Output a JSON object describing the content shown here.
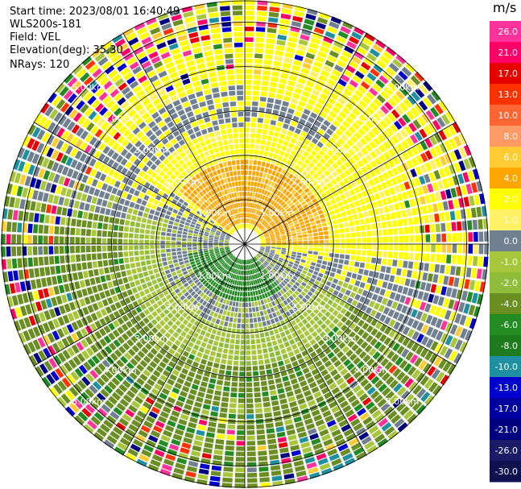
{
  "header": {
    "start_time": "Start time: 2023/08/01 16:40:49",
    "site": "WLS200s-181",
    "field": "Field: VEL",
    "elevation": "Elevation(deg): 35.30",
    "nrays": "NRays: 120"
  },
  "chart_data": {
    "type": "ppi_polar_heatmap",
    "title": "Start time: 2023/08/01 16:40:49",
    "field": "VEL",
    "units": "m/s",
    "n_rays": 120,
    "max_range_km": 5.5,
    "range_rings_km": [
      1,
      2,
      3,
      4,
      5
    ],
    "range_ring_labels": [
      "1.00km",
      "2.00km",
      "3.00km",
      "4.00km",
      "5.00km"
    ],
    "colorbar": {
      "title": "m/s",
      "ticks": [
        "26.0",
        "21.0",
        "17.0",
        "13.0",
        "10.0",
        "8.0",
        "6.0",
        "4.0",
        "2.0",
        "1.0",
        "0.0",
        "-1.0",
        "-2.0",
        "-4.0",
        "-6.0",
        "-8.0",
        "-10.0",
        "-13.0",
        "-17.0",
        "-21.0",
        "-26.0",
        "-30.0"
      ],
      "colors": [
        "#ff3399",
        "#ff0066",
        "#e60000",
        "#ff3300",
        "#ff6633",
        "#ff9966",
        "#ffcc33",
        "#ffa500",
        "#ffff00",
        "#fff066",
        "#708090",
        "#a8c63c",
        "#8fbc3a",
        "#6b8e23",
        "#228b22",
        "#1e7b1e",
        "#1e90a0",
        "#0000cd",
        "#0000a0",
        "#000080",
        "#1a1a66",
        "#101050"
      ]
    },
    "pattern": {
      "description": "Radial velocity PPI: positive (yellow/orange) to the north-east, negative (green) to the south-west, noisy speckle at far range",
      "inner_orange_core_bearing_deg": 20,
      "green_core_bearing_deg": 200
    }
  }
}
